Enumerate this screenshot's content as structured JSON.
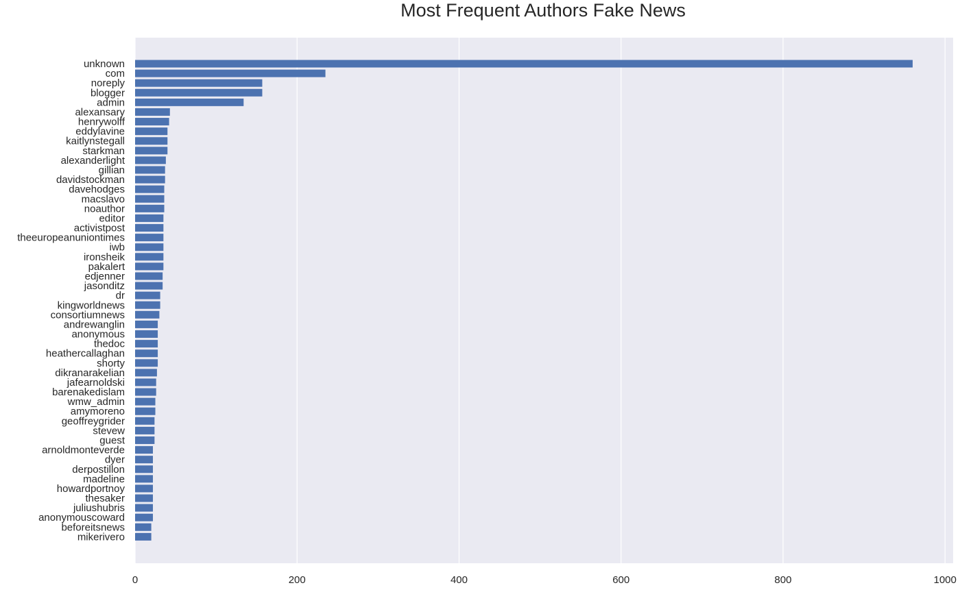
{
  "chart_data": {
    "type": "bar",
    "orientation": "horizontal",
    "title": "Most Frequent Authors Fake News",
    "xlabel": "",
    "ylabel": "",
    "xlim": [
      0,
      1010
    ],
    "x_ticks": [
      0,
      200,
      400,
      600,
      800,
      1000
    ],
    "grid": true,
    "colors": {
      "bar": "#4c72b0",
      "plot_bg": "#eaeaf2",
      "grid": "#ffffff",
      "text": "#262626"
    },
    "categories": [
      "unknown",
      "com",
      "noreply",
      "blogger",
      "admin",
      "alexansary",
      "henrywolff",
      "eddylavine",
      "kaitlynstegall",
      "starkman",
      "alexanderlight",
      "gillian",
      "davidstockman",
      "davehodges",
      "macslavo",
      "noauthor",
      "editor",
      "activistpost",
      "theeuropeanuniontimes",
      "iwb",
      "ironsheik",
      "pakalert",
      "edjenner",
      "jasonditz",
      "dr",
      "kingworldnews",
      "consortiumnews",
      "andrewanglin",
      "anonymous",
      "thedoc",
      "heathercallaghan",
      "shorty",
      "dikranarakelian",
      "jafearnoldski",
      "barenakedislam",
      "wmw_admin",
      "amymoreno",
      "geoffreygrider",
      "stevew",
      "guest",
      "arnoldmonteverde",
      "dyer",
      "derpostillon",
      "madeline",
      "howardportnoy",
      "thesaker",
      "juliushubris",
      "anonymouscoward",
      "beforeitsnews",
      "mikerivero"
    ],
    "values": [
      960,
      235,
      157,
      157,
      134,
      43,
      42,
      40,
      40,
      40,
      38,
      37,
      37,
      36,
      36,
      36,
      35,
      35,
      35,
      35,
      35,
      35,
      34,
      34,
      31,
      31,
      30,
      28,
      28,
      28,
      28,
      28,
      27,
      26,
      26,
      25,
      25,
      24,
      24,
      24,
      22,
      22,
      22,
      22,
      22,
      22,
      22,
      22,
      20,
      20
    ]
  }
}
